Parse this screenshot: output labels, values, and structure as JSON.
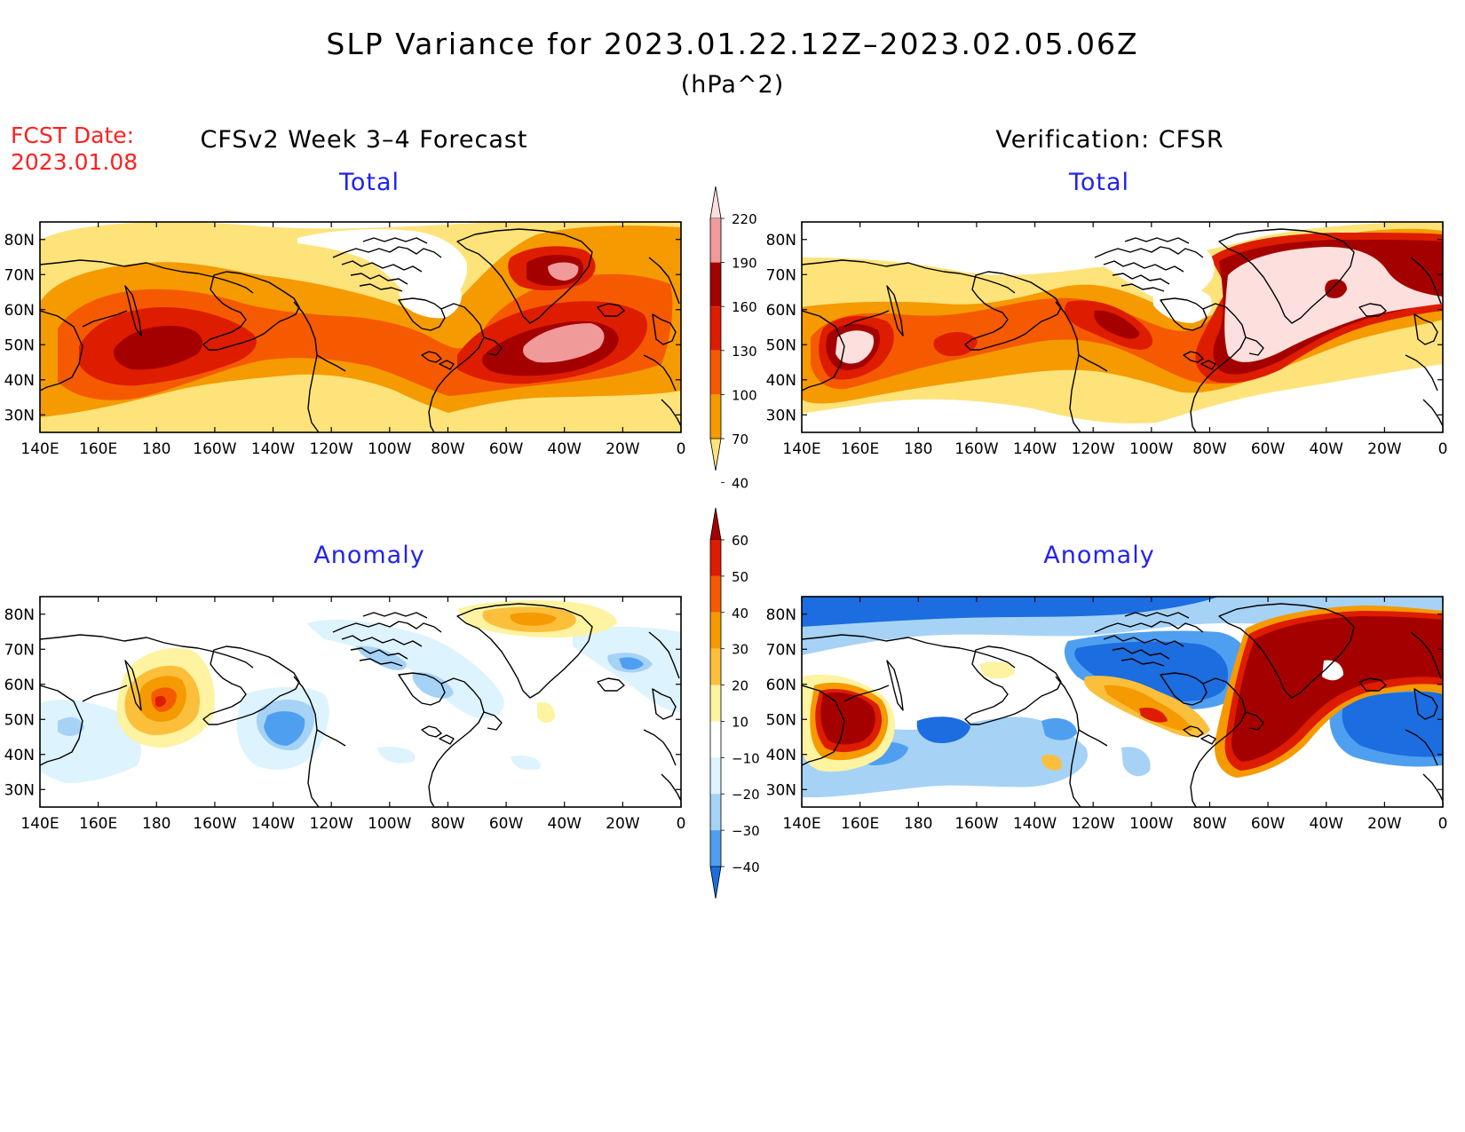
{
  "header": {
    "title": "SLP Variance for 2023.01.22.12Z–2023.02.05.06Z",
    "units": "(hPa^2)",
    "fcst_label": "FCST Date:",
    "fcst_date": "2023.01.08"
  },
  "columns": {
    "left": "CFSv2 Week 3–4 Forecast",
    "right": "Verification: CFSR"
  },
  "panels": {
    "total_label": "Total",
    "anomaly_label": "Anomaly"
  },
  "map_axes": {
    "x_ticks": [
      "140E",
      "160E",
      "180",
      "160W",
      "140W",
      "120W",
      "100W",
      "80W",
      "60W",
      "40W",
      "20W",
      "0"
    ],
    "y_ticks": [
      "80N",
      "70N",
      "60N",
      "50N",
      "40N",
      "30N"
    ]
  },
  "legend_total": {
    "levels": [
      "220",
      "190",
      "160",
      "130",
      "100",
      "70",
      "40"
    ],
    "colors": [
      "#fde0dd",
      "#f09a9a",
      "#a50000",
      "#dd1c00",
      "#f55a00",
      "#f59a00",
      "#fde37a"
    ]
  },
  "legend_anomaly": {
    "levels": [
      "60",
      "50",
      "40",
      "30",
      "20",
      "10",
      "−10",
      "−20",
      "−30",
      "−40"
    ],
    "colors": [
      "#a50000",
      "#dd1c00",
      "#f55a00",
      "#f59a00",
      "#fbbf3c",
      "#fdf3a0",
      "#ffffff",
      "#ddf3fd",
      "#a6d2f5",
      "#4f9ff0",
      "#1c6de0"
    ]
  },
  "colors": {
    "fcst_red": "#ff2020",
    "panel_title_blue": "#2222ee"
  }
}
